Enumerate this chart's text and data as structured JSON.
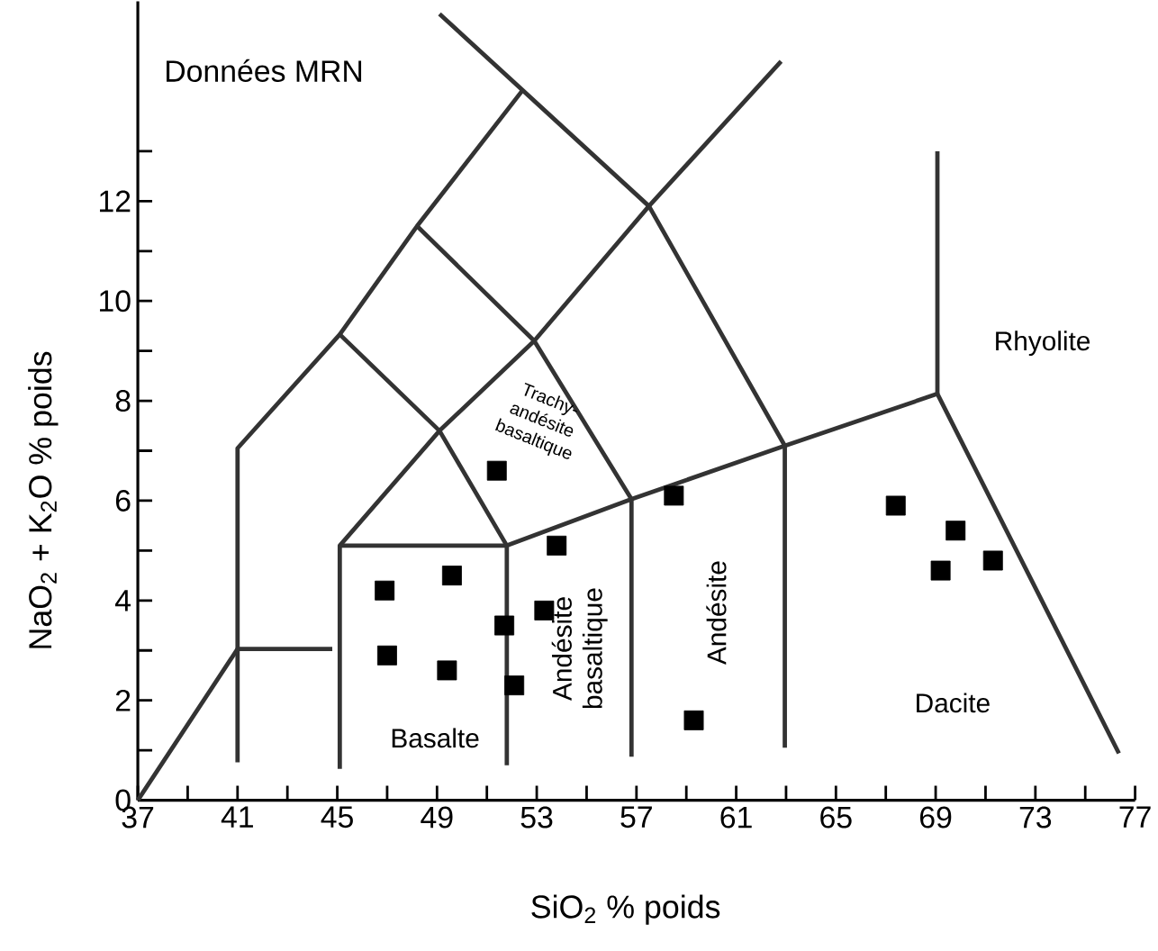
{
  "chart_data": {
    "type": "scatter",
    "title": "Données MRN",
    "xlabel": "SiO$_{2}$ % poids",
    "ylabel": "NaO$_{2}$ + K$_{2}$O % poids",
    "xlim": [
      37,
      77
    ],
    "ylim": [
      0,
      16
    ],
    "xticks": [
      37,
      {
        "value": 39,
        "label": null
      },
      41,
      {
        "value": 43,
        "label": null
      },
      45,
      {
        "value": 47,
        "label": null
      },
      49,
      {
        "value": 51,
        "label": null
      },
      53,
      {
        "value": 55,
        "label": null
      },
      57,
      {
        "value": 59,
        "label": null
      },
      61,
      {
        "value": 63,
        "label": null
      },
      65,
      {
        "value": 67,
        "label": null
      },
      69,
      {
        "value": 71,
        "label": null
      },
      73,
      {
        "value": 75,
        "label": null
      },
      77
    ],
    "yticks": [
      0,
      {
        "value": 1,
        "label": null
      },
      2,
      {
        "value": 3,
        "label": null
      },
      4,
      {
        "value": 5,
        "label": null
      },
      6,
      {
        "value": 7,
        "label": null
      },
      8,
      {
        "value": 9,
        "label": null
      },
      10,
      {
        "value": 11,
        "label": null
      },
      12,
      {
        "value": 13,
        "label": null
      }
    ],
    "grid": false,
    "series": [
      {
        "type": "line",
        "color": "#333333",
        "marker": "none",
        "x": [
          37,
          41,
          44.8
        ],
        "values": [
          0,
          3.03,
          3.03
        ]
      },
      {
        "type": "line",
        "color": "#333333",
        "marker": "none",
        "x": [
          41,
          41,
          45.1,
          48.2,
          52.4
        ],
        "values": [
          0.76,
          7.05,
          9.33,
          11.5,
          14.2
        ]
      },
      {
        "type": "line",
        "color": "#333333",
        "marker": "none",
        "x": [
          45.1,
          45.1,
          49.1,
          52.9,
          57.5,
          62.8
        ],
        "values": [
          0.63,
          5.1,
          7.4,
          9.2,
          11.9,
          14.8
        ]
      },
      {
        "type": "line",
        "color": "#333333",
        "marker": "none",
        "x": [
          45.1,
          51.8,
          56.8,
          62.95,
          69.07,
          76.35
        ],
        "values": [
          5.1,
          5.1,
          6.03,
          7.1,
          8.14,
          0.94
        ]
      },
      {
        "type": "line",
        "color": "#333333",
        "marker": "none",
        "x": [
          51.8,
          51.8,
          49.1,
          45.1
        ],
        "values": [
          0.7,
          5.1,
          7.4,
          9.33
        ]
      },
      {
        "type": "line",
        "color": "#333333",
        "marker": "none",
        "x": [
          56.8,
          56.8,
          52.9,
          48.2
        ],
        "values": [
          0.87,
          6.03,
          9.2,
          11.5
        ]
      },
      {
        "type": "line",
        "color": "#333333",
        "marker": "none",
        "x": [
          62.95,
          62.95,
          57.5,
          49.1
        ],
        "values": [
          1.05,
          7.1,
          11.9,
          15.75
        ]
      },
      {
        "type": "line",
        "color": "#333333",
        "marker": "none",
        "x": [
          69.07,
          69.07
        ],
        "values": [
          8.14,
          13.0
        ]
      },
      {
        "color": "#000000",
        "marker": "square",
        "x": [
          51.4,
          46.9,
          49.6,
          47.0,
          49.4,
          51.7,
          52.1,
          53.3,
          53.8,
          58.5,
          59.3,
          67.4,
          69.8,
          69.2,
          71.3
        ],
        "values": [
          6.6,
          4.2,
          4.5,
          2.9,
          2.6,
          3.5,
          2.3,
          3.8,
          5.1,
          6.1,
          1.6,
          5.9,
          5.4,
          4.6,
          4.8
        ]
      }
    ],
    "annotations": [
      "Basalte",
      "Andésite basaltique",
      "Andésite",
      "Dacite",
      "Rhyolite",
      "Trachy-andésite basaltique"
    ]
  }
}
